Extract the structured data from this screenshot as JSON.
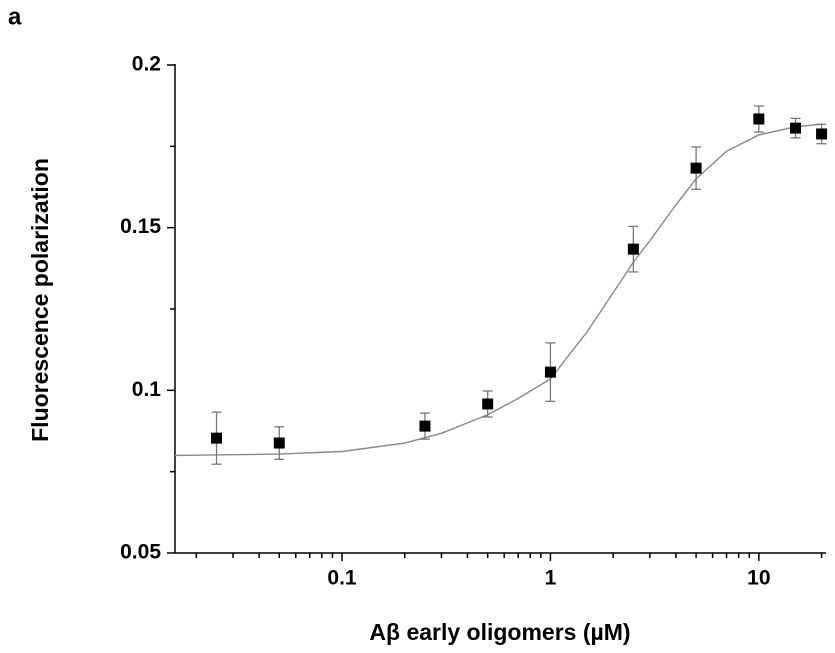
{
  "chart_data": {
    "type": "scatter",
    "panel_label": "a",
    "xlabel": "Aβ early oligomers (µM)",
    "ylabel": "Fluorescence polarization",
    "x": [
      0.025,
      0.05,
      0.25,
      0.5,
      1,
      2.5,
      5,
      10,
      15,
      20
    ],
    "values": [
      0.0853,
      0.0838,
      0.089,
      0.0958,
      0.1056,
      0.1434,
      0.1683,
      0.1834,
      0.1806,
      0.1788
    ],
    "errors": [
      0.008,
      0.005,
      0.004,
      0.004,
      0.009,
      0.007,
      0.0065,
      0.004,
      0.003,
      0.003
    ],
    "color": "#000000",
    "fit": {
      "x": [
        0.0158,
        0.05,
        0.1,
        0.2,
        0.3,
        0.5,
        0.7,
        1,
        1.5,
        2,
        2.5,
        3,
        4,
        5,
        7,
        10,
        15,
        20
      ],
      "values": [
        0.08,
        0.0804,
        0.0812,
        0.0838,
        0.0868,
        0.0925,
        0.0975,
        0.1035,
        0.118,
        0.13,
        0.1394,
        0.146,
        0.157,
        0.165,
        0.1735,
        0.1785,
        0.181,
        0.1818
      ],
      "color": "#888888"
    },
    "xscale": "log",
    "xlim": [
      0.0158,
      21
    ],
    "xticks": [
      0.1,
      1,
      10
    ],
    "xminorticks": [
      0.02,
      0.03,
      0.04,
      0.05,
      0.06,
      0.07,
      0.08,
      0.09,
      0.2,
      0.3,
      0.4,
      0.5,
      0.6,
      0.7,
      0.8,
      0.9,
      2,
      3,
      4,
      5,
      6,
      7,
      8,
      9,
      20
    ],
    "ylim": [
      0.05,
      0.2
    ],
    "yticks": [
      0.05,
      0.1,
      0.15,
      0.2
    ],
    "yminorticks": [
      0.075,
      0.125,
      0.175
    ]
  }
}
